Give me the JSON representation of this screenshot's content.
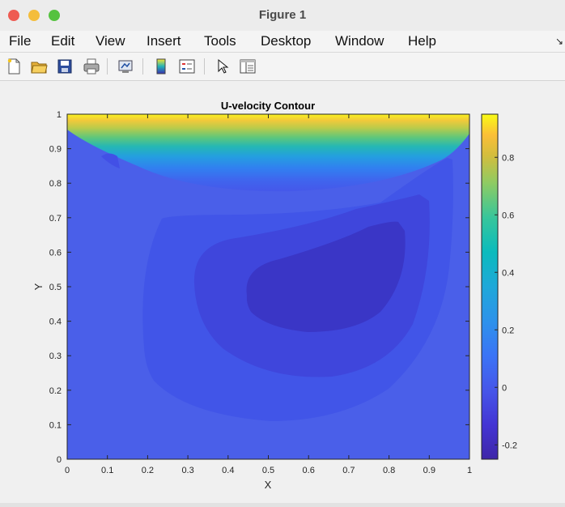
{
  "window": {
    "title": "Figure 1"
  },
  "menu": {
    "items": [
      "File",
      "Edit",
      "View",
      "Insert",
      "Tools",
      "Desktop",
      "Window",
      "Help"
    ],
    "overflow_icon": "arrow-icon"
  },
  "toolbar": {
    "icons": [
      "new-figure-icon",
      "open-file-icon",
      "save-icon",
      "print-icon",
      "link-plot-icon",
      "insert-colorbar-icon",
      "insert-legend-icon",
      "pointer-icon",
      "property-editor-icon"
    ]
  },
  "chart_data": {
    "type": "heatmap",
    "subtype": "filled-contour",
    "title": "U-velocity Contour",
    "xlabel": "X",
    "ylabel": "Y",
    "xlim": [
      0,
      1
    ],
    "ylim": [
      0,
      1
    ],
    "xticks": [
      "0",
      "0.1",
      "0.2",
      "0.3",
      "0.4",
      "0.5",
      "0.6",
      "0.7",
      "0.8",
      "0.9",
      "1"
    ],
    "yticks": [
      "0",
      "0.1",
      "0.2",
      "0.3",
      "0.4",
      "0.5",
      "0.6",
      "0.7",
      "0.8",
      "0.9",
      "1"
    ],
    "colorbar": {
      "colormap": "parula",
      "range": [
        -0.25,
        0.95
      ],
      "ticks": [
        "-0.2",
        "0",
        "0.2",
        "0.4",
        "0.6",
        "0.8"
      ],
      "tick_values": [
        -0.2,
        0,
        0.2,
        0.4,
        0.6,
        0.8
      ]
    },
    "field": {
      "min_value": -0.22,
      "max_value": 0.95,
      "min_location": [
        0.62,
        0.5
      ],
      "max_location": "top lid (y = 1)"
    },
    "grid": false,
    "colors": {
      "min": "#3a2fb0",
      "mid_low": "#3f4fe6",
      "zero": "#4a5fe9",
      "mid": "#1fb0c6",
      "high": "#8dcc47",
      "max": "#f7e530"
    }
  }
}
